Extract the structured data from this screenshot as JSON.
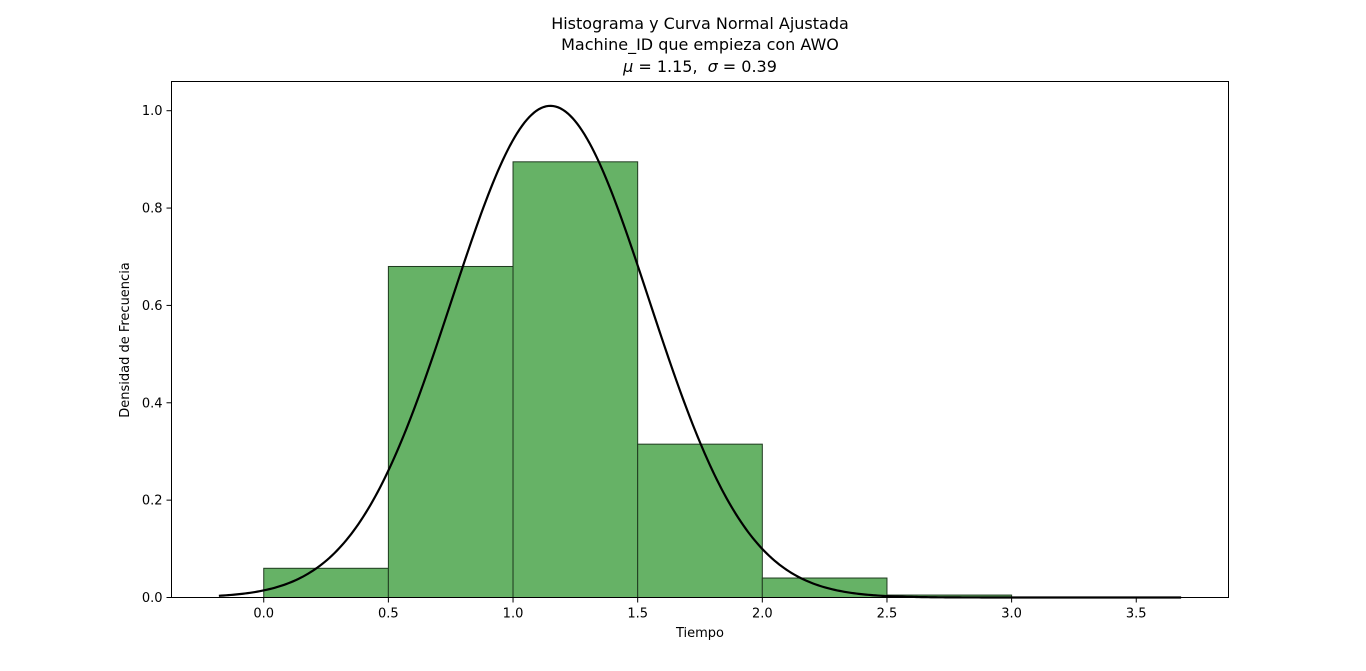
{
  "chart_data": {
    "type": "bar",
    "title_lines": [
      "Histograma y Curva Normal Ajustada",
      "Machine_ID que empieza con AWO"
    ],
    "subtitle": {
      "mu_symbol": "μ",
      "mu_text": " = 1.15,",
      "sigma_symbol": "σ",
      "sigma_text": " = 0.39"
    },
    "xlabel": "Tiempo",
    "ylabel": "Densidad de Frecuencia",
    "xlim": [
      -0.37,
      3.87
    ],
    "ylim": [
      0,
      1.06
    ],
    "xticks": [
      0.0,
      0.5,
      1.0,
      1.5,
      2.0,
      2.5,
      3.0,
      3.5
    ],
    "xtick_labels": [
      "0.0",
      "0.5",
      "1.0",
      "1.5",
      "2.0",
      "2.5",
      "3.0",
      "3.5"
    ],
    "yticks": [
      0.0,
      0.2,
      0.4,
      0.6,
      0.8,
      1.0
    ],
    "ytick_labels": [
      "0.0",
      "0.2",
      "0.4",
      "0.6",
      "0.8",
      "1.0"
    ],
    "bins": [
      {
        "start": 0.0,
        "end": 0.5,
        "density": 0.06
      },
      {
        "start": 0.5,
        "end": 1.0,
        "density": 0.68
      },
      {
        "start": 1.0,
        "end": 1.5,
        "density": 0.895
      },
      {
        "start": 1.5,
        "end": 2.0,
        "density": 0.315
      },
      {
        "start": 2.0,
        "end": 2.5,
        "density": 0.04
      },
      {
        "start": 2.5,
        "end": 3.0,
        "density": 0.005
      },
      {
        "start": 3.0,
        "end": 3.5,
        "density": 0.0
      }
    ],
    "normal_curve": {
      "mu": 1.15,
      "sigma": 0.395,
      "x_range": [
        -0.18,
        3.68
      ]
    },
    "colors": {
      "bar_fill": "#66b266",
      "bar_edge": "#1f3a1f",
      "curve": "#000000"
    },
    "grid": false
  }
}
